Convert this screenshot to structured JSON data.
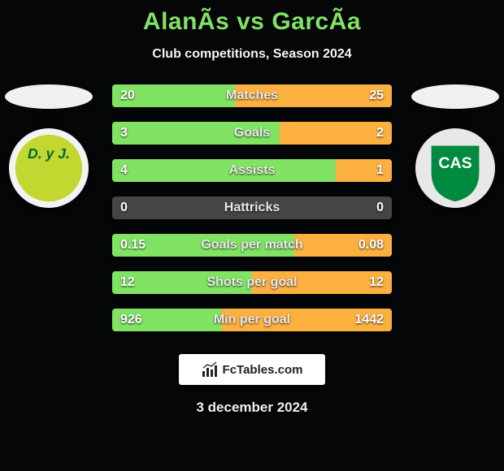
{
  "title_parts": {
    "player1": "AlanÃ­s",
    "vs": " vs ",
    "player2": "GarcÃ­a"
  },
  "subtitle": "Club competitions, Season 2024",
  "date": "3 december 2024",
  "site_label": "FcTables.com",
  "colors": {
    "accent": "#81e363",
    "bar_left": "#81e363",
    "bar_right": "#fbb040",
    "bar_bg": "#454545",
    "crest_left_bg": "#f3f3f3",
    "crest_left_fill": "#c2d72f",
    "crest_left_text": "#006837",
    "crest_right_bg": "#e8e8e8",
    "crest_right_shield": "#008a3f",
    "crest_right_text": "#ffffff",
    "flag": "#f0f0f0"
  },
  "crest_left": {
    "initials": "D. y J."
  },
  "crest_right": {
    "initials": "CAS"
  },
  "bars": [
    {
      "label": "Matches",
      "left_val": "20",
      "right_val": "25",
      "left_pct": 44,
      "right_pct": 56
    },
    {
      "label": "Goals",
      "left_val": "3",
      "right_val": "2",
      "left_pct": 60,
      "right_pct": 40
    },
    {
      "label": "Assists",
      "left_val": "4",
      "right_val": "1",
      "left_pct": 80,
      "right_pct": 20
    },
    {
      "label": "Hattricks",
      "left_val": "0",
      "right_val": "0",
      "left_pct": 0,
      "right_pct": 0
    },
    {
      "label": "Goals per match",
      "left_val": "0.15",
      "right_val": "0.08",
      "left_pct": 65,
      "right_pct": 35
    },
    {
      "label": "Shots per goal",
      "left_val": "12",
      "right_val": "12",
      "left_pct": 50,
      "right_pct": 50
    },
    {
      "label": "Min per goal",
      "left_val": "926",
      "right_val": "1442",
      "left_pct": 39,
      "right_pct": 61
    }
  ]
}
